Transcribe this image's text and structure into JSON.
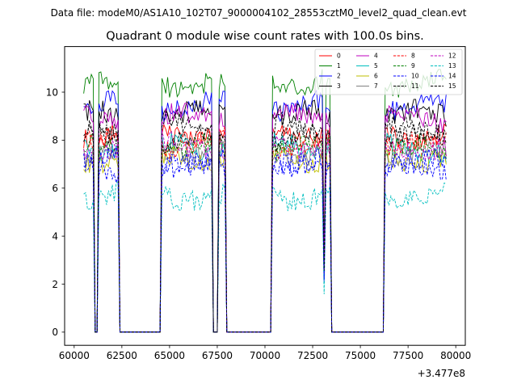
{
  "chart_data": {
    "type": "line",
    "suptitle": "Data file: modeM0/AS1A10_102T07_9000004102_28553cztM0_level2_quad_clean.evt",
    "title": "Quadrant 0 module wise count rates with 100.0s bins.",
    "xlabel": "",
    "ylabel": "",
    "x_offset_label": "+3.477e8",
    "xlim": [
      59500,
      80500
    ],
    "ylim": [
      -0.55,
      11.9
    ],
    "x_ticks": [
      60000,
      62500,
      65000,
      67500,
      70000,
      72500,
      75000,
      77500,
      80000
    ],
    "x_tick_labels": [
      "60000",
      "62500",
      "65000",
      "67500",
      "70000",
      "72500",
      "75000",
      "77500",
      "80000"
    ],
    "y_ticks": [
      0,
      2,
      4,
      6,
      8,
      10
    ],
    "y_tick_labels": [
      "0",
      "2",
      "4",
      "6",
      "8",
      "10"
    ],
    "legend_position": "top-right",
    "grid": false,
    "gap_pattern": [
      [
        60500,
        1
      ],
      [
        61000,
        1
      ],
      [
        61100,
        0
      ],
      [
        61200,
        0
      ],
      [
        61300,
        1
      ],
      [
        61400,
        1
      ],
      [
        61600,
        1
      ],
      [
        61900,
        1
      ],
      [
        62300,
        1
      ],
      [
        62400,
        0
      ],
      [
        64500,
        0
      ],
      [
        64600,
        1
      ],
      [
        67200,
        1
      ],
      [
        67300,
        0
      ],
      [
        67500,
        0
      ],
      [
        67600,
        1
      ],
      [
        67800,
        1
      ],
      [
        67900,
        1
      ],
      [
        68000,
        0
      ],
      [
        70300,
        0
      ],
      [
        70400,
        1
      ],
      [
        73000,
        1
      ],
      [
        73100,
        0.3
      ],
      [
        73200,
        1
      ],
      [
        73400,
        1
      ],
      [
        73500,
        0
      ],
      [
        76200,
        0
      ],
      [
        76300,
        1
      ],
      [
        79500,
        1
      ]
    ],
    "series": [
      {
        "name": "0",
        "color": "#ff0000",
        "dash": "solid",
        "level": 8.3
      },
      {
        "name": "1",
        "color": "#008000",
        "dash": "solid",
        "level": 10.4
      },
      {
        "name": "2",
        "color": "#0000ff",
        "dash": "solid",
        "level": 9.4
      },
      {
        "name": "3",
        "color": "#000000",
        "dash": "solid",
        "level": 9.0
      },
      {
        "name": "4",
        "color": "#bf00bf",
        "dash": "solid",
        "level": 8.9
      },
      {
        "name": "5",
        "color": "#00bfbf",
        "dash": "solid",
        "level": 7.7
      },
      {
        "name": "6",
        "color": "#bfbf00",
        "dash": "solid",
        "level": 7.3
      },
      {
        "name": "7",
        "color": "#808080",
        "dash": "solid",
        "level": 7.5
      },
      {
        "name": "8",
        "color": "#ff0000",
        "dash": "dashed",
        "level": 7.9
      },
      {
        "name": "9",
        "color": "#008000",
        "dash": "dashed",
        "level": 7.6
      },
      {
        "name": "10",
        "color": "#0000ff",
        "dash": "dashed",
        "level": 6.8
      },
      {
        "name": "11",
        "color": "#000000",
        "dash": "dashed",
        "level": 8.5
      },
      {
        "name": "12",
        "color": "#bf00bf",
        "dash": "dashed",
        "level": 7.8
      },
      {
        "name": "13",
        "color": "#00bfbf",
        "dash": "dashed",
        "level": 5.7
      },
      {
        "name": "14",
        "color": "#0000ff",
        "dash": "dashed",
        "level": 7.1
      },
      {
        "name": "15",
        "color": "#000000",
        "dash": "dashed",
        "level": 8.1
      }
    ]
  }
}
